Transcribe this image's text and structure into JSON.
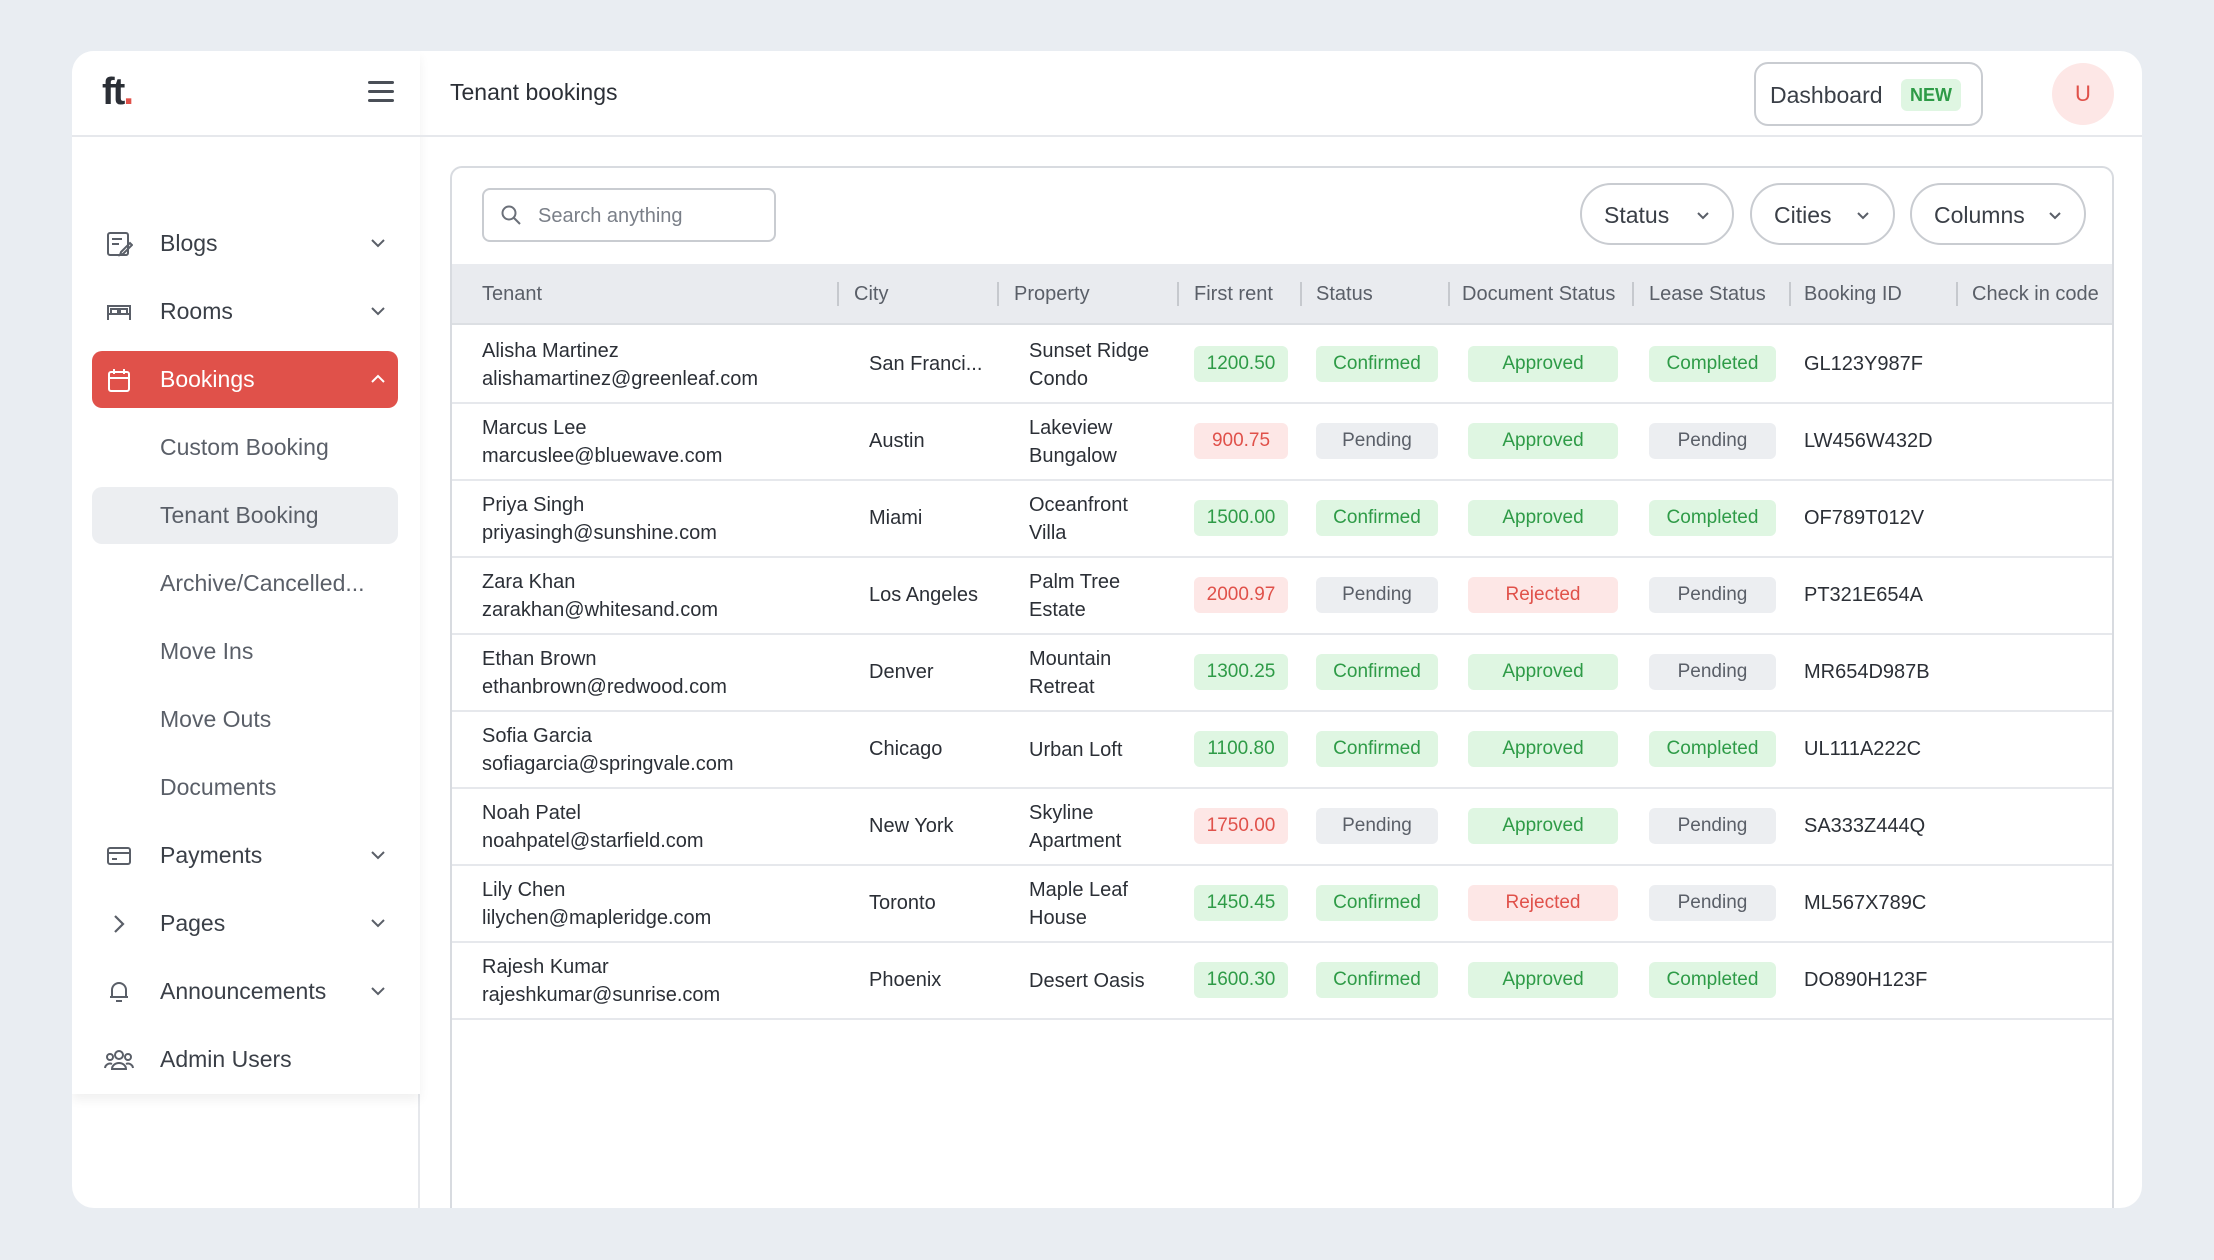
{
  "brand": {
    "logo_text": "ft",
    "logo_dot": "."
  },
  "header": {
    "title": "Tenant bookings",
    "dashboard_label": "Dashboard",
    "dashboard_badge": "NEW",
    "avatar_initial": "U"
  },
  "sidebar": {
    "items": [
      {
        "label": "Blogs",
        "icon": "edit-doc-icon",
        "expandable": true
      },
      {
        "label": "Rooms",
        "icon": "bed-icon",
        "expandable": true
      },
      {
        "label": "Bookings",
        "icon": "calendar-icon",
        "expandable": true,
        "active": true
      },
      {
        "label": "Payments",
        "icon": "card-icon",
        "expandable": true
      },
      {
        "label": "Pages",
        "icon": "chevron-right-icon",
        "expandable": true
      },
      {
        "label": "Announcements",
        "icon": "bell-icon",
        "expandable": true
      },
      {
        "label": "Admin Users",
        "icon": "users-icon",
        "expandable": false
      }
    ],
    "bookings_subitems": [
      {
        "label": "Custom Booking"
      },
      {
        "label": "Tenant Booking",
        "selected": true
      },
      {
        "label": "Archive/Cancelled..."
      },
      {
        "label": "Move Ins"
      },
      {
        "label": "Move Outs"
      },
      {
        "label": "Documents"
      }
    ]
  },
  "toolbar": {
    "search_placeholder": "Search anything",
    "filters": [
      "Status",
      "Cities",
      "Columns"
    ]
  },
  "table": {
    "columns": [
      "Tenant",
      "City",
      "Property",
      "First rent",
      "Status",
      "Document Status",
      "Lease Status",
      "Booking ID",
      "Check in code"
    ],
    "rows": [
      {
        "name": "Alisha Martinez",
        "email": "alishamartinez@greenleaf.com",
        "city": "San Franci...",
        "property1": "Sunset Ridge",
        "property2": "Condo",
        "rent": "1200.50",
        "rent_ok": true,
        "status": "Confirmed",
        "doc": "Approved",
        "lease": "Completed",
        "id": "GL123Y987F"
      },
      {
        "name": "Marcus Lee",
        "email": "marcuslee@bluewave.com",
        "city": "Austin",
        "property1": "Lakeview",
        "property2": "Bungalow",
        "rent": "900.75",
        "rent_ok": false,
        "status": "Pending",
        "doc": "Approved",
        "lease": "Pending",
        "id": "LW456W432D"
      },
      {
        "name": "Priya Singh",
        "email": "priyasingh@sunshine.com",
        "city": "Miami",
        "property1": "Oceanfront",
        "property2": "Villa",
        "rent": "1500.00",
        "rent_ok": true,
        "status": "Confirmed",
        "doc": "Approved",
        "lease": "Completed",
        "id": "OF789T012V"
      },
      {
        "name": "Zara Khan",
        "email": "zarakhan@whitesand.com",
        "city": "Los Angeles",
        "property1": "Palm Tree",
        "property2": "Estate",
        "rent": "2000.97",
        "rent_ok": false,
        "status": "Pending",
        "doc": "Rejected",
        "lease": "Pending",
        "id": "PT321E654A"
      },
      {
        "name": "Ethan Brown",
        "email": "ethanbrown@redwood.com",
        "city": "Denver",
        "property1": "Mountain",
        "property2": "Retreat",
        "rent": "1300.25",
        "rent_ok": true,
        "status": "Confirmed",
        "doc": "Approved",
        "lease": "Pending",
        "id": "MR654D987B"
      },
      {
        "name": "Sofia Garcia",
        "email": "sofiagarcia@springvale.com",
        "city": "Chicago",
        "property1": "Urban Loft",
        "property2": "",
        "rent": "1100.80",
        "rent_ok": true,
        "status": "Confirmed",
        "doc": "Approved",
        "lease": "Completed",
        "id": "UL111A222C"
      },
      {
        "name": "Noah Patel",
        "email": "noahpatel@starfield.com",
        "city": "New York",
        "property1": "Skyline",
        "property2": "Apartment",
        "rent": "1750.00",
        "rent_ok": false,
        "status": "Pending",
        "doc": "Approved",
        "lease": "Pending",
        "id": "SA333Z444Q"
      },
      {
        "name": "Lily Chen",
        "email": "lilychen@mapleridge.com",
        "city": "Toronto",
        "property1": "Maple Leaf",
        "property2": "House",
        "rent": "1450.45",
        "rent_ok": true,
        "status": "Confirmed",
        "doc": "Rejected",
        "lease": "Pending",
        "id": "ML567X789C"
      },
      {
        "name": "Rajesh Kumar",
        "email": "rajeshkumar@sunrise.com",
        "city": "Phoenix",
        "property1": "Desert Oasis",
        "property2": "",
        "rent": "1600.30",
        "rent_ok": true,
        "status": "Confirmed",
        "doc": "Approved",
        "lease": "Completed",
        "id": "DO890H123F"
      }
    ]
  },
  "colors": {
    "accent": "#e0514a",
    "success_bg": "#dff6e2",
    "success_text": "#2e9b47",
    "danger_bg": "#fde7e6",
    "neutral_bg": "#eceef1"
  }
}
